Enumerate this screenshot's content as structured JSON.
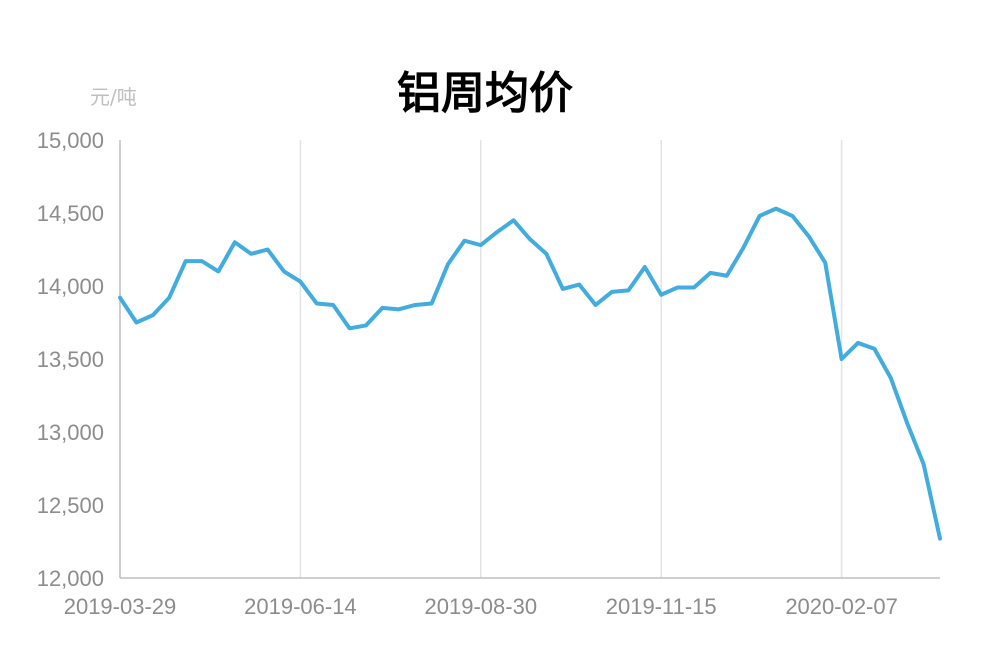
{
  "chart_data": {
    "type": "line",
    "title": "铝周均价",
    "ylabel": "元/吨",
    "xlabel": "",
    "ylim": [
      12000,
      15000
    ],
    "yticks": [
      "15,000",
      "14,500",
      "14,000",
      "13,500",
      "13,000",
      "12,500",
      "12,000"
    ],
    "ytick_values": [
      15000,
      14500,
      14000,
      13500,
      13000,
      12500,
      12000
    ],
    "xtick_labels": [
      "2019-03-29",
      "2019-06-14",
      "2019-08-30",
      "2019-11-15",
      "2020-02-07"
    ],
    "xtick_index": [
      0,
      11,
      22,
      33,
      44
    ],
    "grid": "vertical",
    "series": [
      {
        "color": "#41acdd",
        "values": [
          13920,
          13750,
          13800,
          13920,
          14170,
          14170,
          14100,
          14300,
          14220,
          14250,
          14100,
          14030,
          13880,
          13870,
          13710,
          13730,
          13850,
          13840,
          13870,
          13880,
          14150,
          14310,
          14280,
          14370,
          14450,
          14320,
          14220,
          13980,
          14010,
          13870,
          13960,
          13970,
          14130,
          13940,
          13990,
          13990,
          14090,
          14070,
          14260,
          14480,
          14530,
          14480,
          14340,
          14160,
          13500,
          13610,
          13570,
          13370,
          13060,
          12780,
          12270
        ]
      }
    ]
  }
}
